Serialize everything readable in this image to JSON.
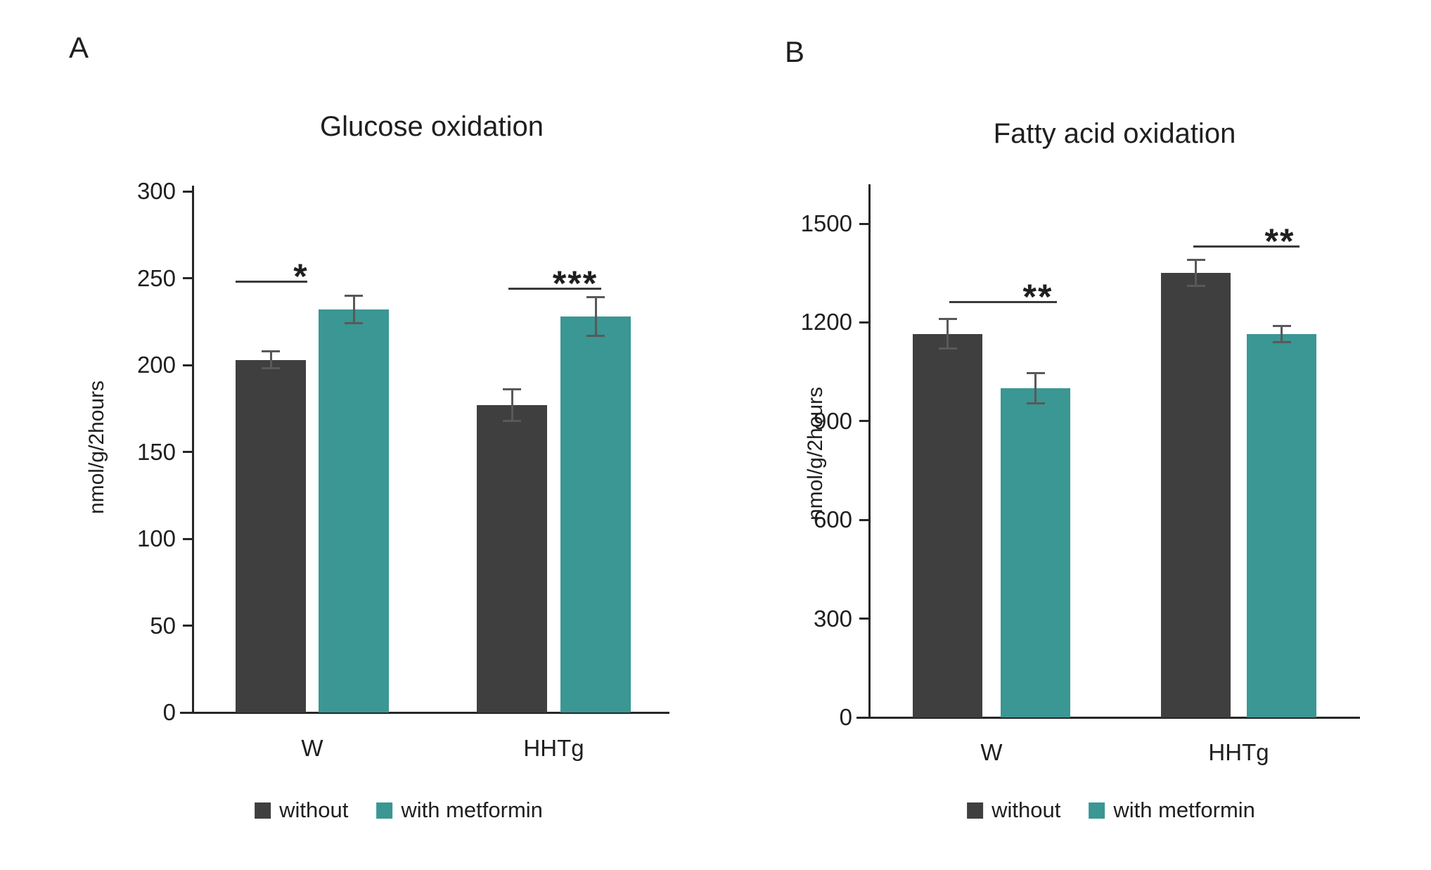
{
  "figure": {
    "background": "#ffffff",
    "legend_items": [
      {
        "label": "without",
        "color": "#3f3f3f"
      },
      {
        "label": "with metformin",
        "color": "#3a9793"
      }
    ],
    "colors": {
      "bar_without": "#3f3f3f",
      "bar_with_metformin": "#3a9793",
      "axis": "#262626",
      "error_bar": "#595959",
      "sig_line": "#3a3a3a",
      "text": "#1f1f1f"
    }
  },
  "chart_data": [
    {
      "panel": "A",
      "type": "bar",
      "title": "Glucose oxidation",
      "ylabel": "nmol/g/2hours",
      "xlabel": "",
      "categories": [
        "W",
        "HHTg"
      ],
      "series": [
        {
          "name": "without",
          "values": [
            203,
            177
          ],
          "errors": [
            5,
            9
          ]
        },
        {
          "name": "with metformin",
          "values": [
            232,
            228
          ],
          "errors": [
            8,
            11
          ]
        }
      ],
      "ylim": [
        0,
        300
      ],
      "yticks": [
        0,
        50,
        100,
        150,
        200,
        250,
        300
      ],
      "grid": false,
      "legend_position": "bottom",
      "annotations": [
        {
          "label": "*",
          "between": [
            "W without",
            "W with metformin"
          ]
        },
        {
          "label": "***",
          "between": [
            "HHTg without",
            "HHTg with metformin"
          ]
        }
      ]
    },
    {
      "panel": "B",
      "type": "bar",
      "title": "Fatty acid oxidation",
      "ylabel": "nmol/g/2hours",
      "xlabel": "",
      "categories": [
        "W",
        "HHTg"
      ],
      "series": [
        {
          "name": "without",
          "values": [
            1165,
            1350
          ],
          "errors": [
            45,
            40
          ]
        },
        {
          "name": "with metformin",
          "values": [
            1000,
            1165
          ],
          "errors": [
            45,
            25
          ]
        }
      ],
      "ylim": [
        0,
        1500
      ],
      "yticks": [
        0,
        300,
        600,
        900,
        1200,
        1500
      ],
      "grid": false,
      "legend_position": "bottom",
      "annotations": [
        {
          "label": "**",
          "between": [
            "W without",
            "W with metformin"
          ]
        },
        {
          "label": "**",
          "between": [
            "HHTg without",
            "HHTg with metformin"
          ]
        }
      ]
    }
  ]
}
